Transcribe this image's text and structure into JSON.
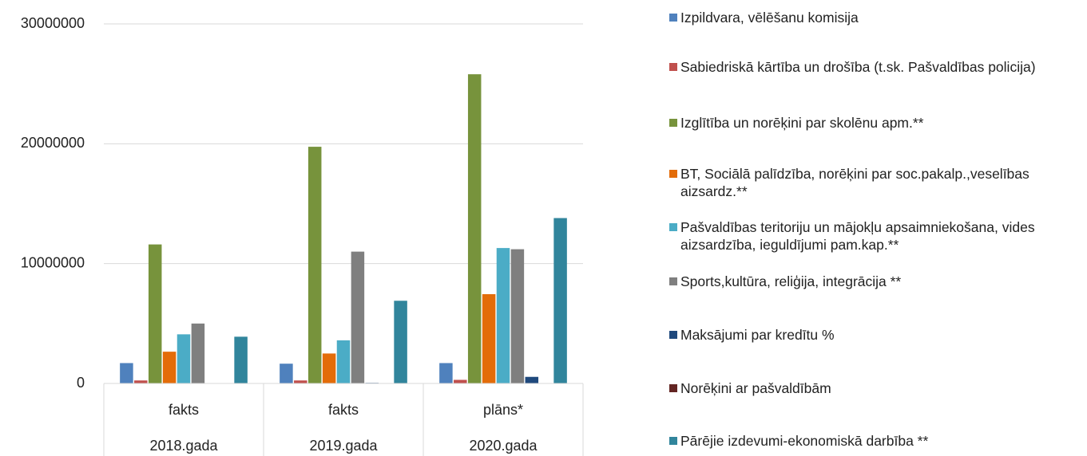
{
  "chart_data": {
    "type": "bar",
    "categories": [
      "fakts",
      "fakts",
      "plāns*"
    ],
    "category_groups": [
      "2018.gada",
      "2019.gada",
      "2020.gada"
    ],
    "ylim": [
      0,
      30000000
    ],
    "yticks": [
      0,
      10000000,
      20000000,
      30000000
    ],
    "grid": true,
    "series": [
      {
        "name": "Izpildvara,  vēlēšanu komisija",
        "color": "#4f81bd",
        "values": [
          1700000,
          1650000,
          1700000
        ]
      },
      {
        "name": "Sabiedriskā kārtība un drošība (t.sk. Pašvaldības policija)",
        "color": "#c0504d",
        "values": [
          250000,
          250000,
          300000
        ]
      },
      {
        "name": "Izglītība un norēķini par skolēnu apm.**",
        "color": "#77933c",
        "values": [
          11600000,
          19750000,
          25800000
        ]
      },
      {
        "name": "BT, Sociālā palīdzība, norēķini par soc.pakalp.,veselības aizsardz.**",
        "color": "#e36c09",
        "values": [
          2650000,
          2500000,
          7450000
        ]
      },
      {
        "name": "Pašvaldības teritoriju un mājokļu apsaimniekošana, vides aizsardzība, ieguldījumi pam.kap.**",
        "color": "#4bacc6",
        "values": [
          4100000,
          3600000,
          11300000
        ]
      },
      {
        "name": "Sports,kultūra, reliģija, integrācija **",
        "color": "#7f7f7f",
        "values": [
          5000000,
          11000000,
          11200000
        ]
      },
      {
        "name": "Maksājumi par kredītu %",
        "color": "#1f497d",
        "values": [
          0,
          50000,
          550000
        ]
      },
      {
        "name": "Norēķini ar pašvaldībām",
        "color": "#632523",
        "values": [
          0,
          0,
          0
        ]
      },
      {
        "name": "Pārējie izdevumi-ekonomiskā darbība **",
        "color": "#31859c",
        "values": [
          3900000,
          6900000,
          13800000
        ]
      }
    ]
  }
}
